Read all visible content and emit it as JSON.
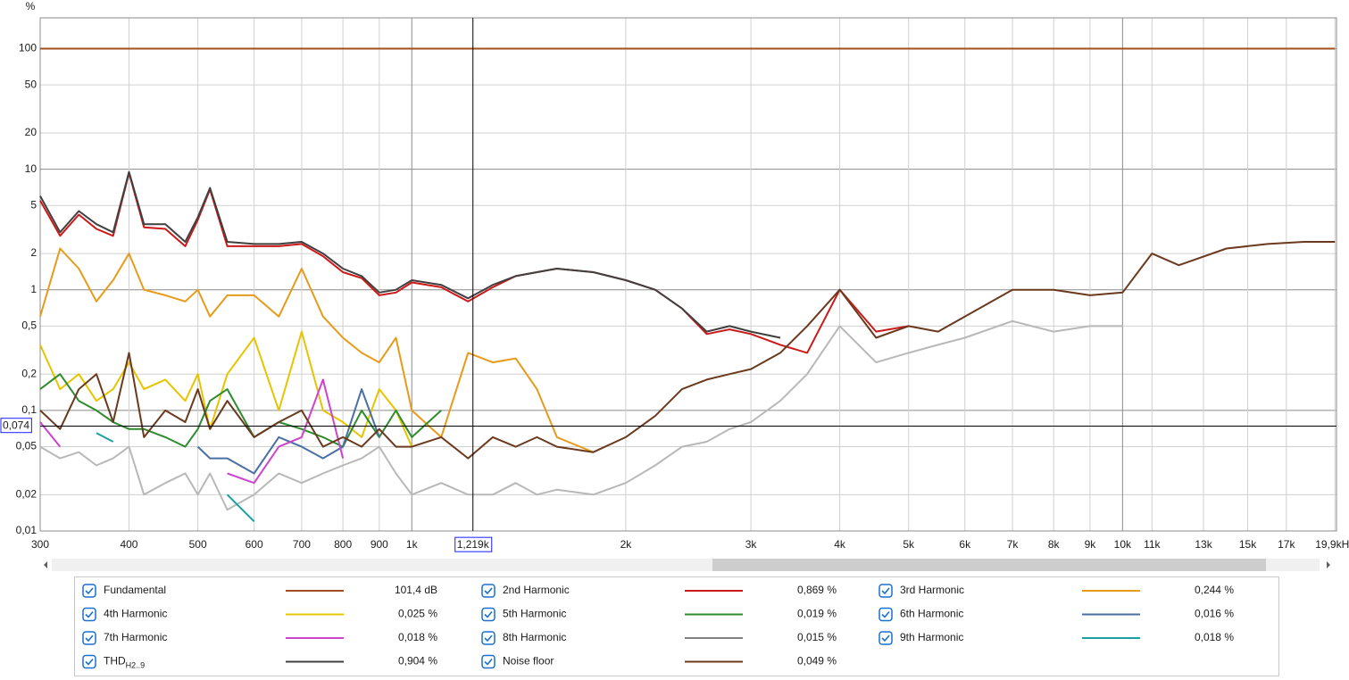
{
  "chart_data": {
    "type": "line",
    "y_label": "%",
    "log_x": true,
    "log_y": true,
    "grid": true,
    "xlim": [
      300,
      20000
    ],
    "ylim": [
      0.01,
      180
    ],
    "xticks": [
      300,
      400,
      500,
      600,
      700,
      800,
      900,
      {
        "value": 1000,
        "label": "1k"
      },
      {
        "value": 2000,
        "label": "2k"
      },
      {
        "value": 3000,
        "label": "3k"
      },
      {
        "value": 4000,
        "label": "4k"
      },
      {
        "value": 5000,
        "label": "5k"
      },
      {
        "value": 6000,
        "label": "6k"
      },
      {
        "value": 7000,
        "label": "7k"
      },
      {
        "value": 8000,
        "label": "8k"
      },
      {
        "value": 9000,
        "label": "9k"
      },
      {
        "value": 10000,
        "label": "10k"
      },
      {
        "value": 11000,
        "label": "11k"
      },
      {
        "value": 13000,
        "label": "13k"
      },
      {
        "value": 15000,
        "label": "15k"
      },
      {
        "value": 17000,
        "label": "17k"
      },
      {
        "value": 19900,
        "label": "19,9kHz"
      }
    ],
    "yticks": [
      {
        "value": 0.01,
        "label": "0,01"
      },
      {
        "value": 0.02,
        "label": "0,02"
      },
      {
        "value": 0.05,
        "label": "0,05"
      },
      {
        "value": 0.1,
        "label": "0,1"
      },
      {
        "value": 0.2,
        "label": "0,2"
      },
      {
        "value": 0.5,
        "label": "0,5"
      },
      1,
      2,
      5,
      10,
      20,
      50,
      100
    ],
    "cursor": {
      "x": {
        "value": 1219,
        "label": "1,219k"
      },
      "y": {
        "value": 0.074,
        "label": "0,074"
      }
    },
    "x": [
      300,
      320,
      340,
      360,
      380,
      400,
      420,
      450,
      480,
      500,
      520,
      550,
      600,
      650,
      700,
      750,
      800,
      850,
      900,
      950,
      1000,
      1100,
      1200,
      1300,
      1400,
      1500,
      1600,
      1800,
      2000,
      2200,
      2400,
      2600,
      2800,
      3000,
      3300,
      3600,
      4000,
      4500,
      5000,
      5500,
      6000,
      7000,
      8000,
      9000,
      10000,
      11000,
      12000,
      14000,
      16000,
      18000,
      19900
    ],
    "series": [
      {
        "name": "Fundamental",
        "color": "#a0501e",
        "readout": "101,4 dB",
        "values": [
          100,
          100,
          100,
          100,
          100,
          100,
          100,
          100,
          100,
          100,
          100,
          100,
          100,
          100,
          100,
          100,
          100,
          100,
          100,
          100,
          100,
          100,
          100,
          100,
          100,
          100,
          100,
          100,
          100,
          100,
          100,
          100,
          100,
          100,
          100,
          100,
          100,
          100,
          100,
          100,
          100,
          100,
          100,
          100,
          100,
          100,
          100,
          100,
          100,
          100,
          100
        ]
      },
      {
        "name": "2nd Harmonic",
        "color": "#cc1a1a",
        "readout": "0,869 %",
        "values": [
          5.5,
          2.8,
          4.2,
          3.2,
          2.8,
          9.3,
          3.3,
          3.2,
          2.3,
          3.8,
          6.8,
          2.3,
          2.3,
          2.3,
          2.4,
          1.9,
          1.4,
          1.25,
          0.9,
          0.95,
          1.15,
          1.05,
          0.8,
          1.05,
          1.3,
          1.4,
          1.5,
          1.4,
          1.2,
          1.0,
          0.7,
          0.43,
          0.47,
          0.43,
          0.35,
          0.3,
          1.0,
          0.45,
          0.5,
          null,
          null,
          null,
          null,
          null,
          null,
          null,
          null,
          null,
          null,
          null,
          null
        ]
      },
      {
        "name": "3rd Harmonic",
        "color": "#e89a1a",
        "readout": "0,244 %",
        "values": [
          0.6,
          2.2,
          1.5,
          0.8,
          1.2,
          2.0,
          1.0,
          0.9,
          0.8,
          1.0,
          0.6,
          0.9,
          0.9,
          0.6,
          1.5,
          0.6,
          0.4,
          0.3,
          0.25,
          0.4,
          0.1,
          0.06,
          0.3,
          0.25,
          0.27,
          0.15,
          0.06,
          0.045,
          null,
          null,
          null,
          null,
          null,
          null,
          null,
          null,
          null,
          null,
          null,
          null,
          null,
          null,
          null,
          null,
          null,
          null,
          null,
          null,
          null,
          null,
          null
        ]
      },
      {
        "name": "4th Harmonic",
        "color": "#e6c400",
        "readout": "0,025 %",
        "values": [
          0.35,
          0.15,
          0.2,
          0.12,
          0.15,
          0.25,
          0.15,
          0.18,
          0.12,
          0.2,
          0.07,
          0.2,
          0.4,
          0.1,
          0.45,
          0.1,
          0.08,
          0.06,
          0.15,
          0.1,
          0.05,
          null,
          null,
          null,
          null,
          null,
          null,
          null,
          null,
          null,
          null,
          null,
          null,
          null,
          null,
          null,
          null,
          null,
          null,
          null,
          null,
          null,
          null,
          null,
          null,
          null,
          null,
          null,
          null,
          null,
          null
        ]
      },
      {
        "name": "5th Harmonic",
        "color": "#2e8b2e",
        "readout": "0,019 %",
        "values": [
          0.15,
          0.2,
          0.12,
          0.1,
          0.08,
          0.07,
          0.07,
          0.06,
          0.05,
          0.07,
          0.12,
          0.15,
          0.06,
          0.08,
          0.07,
          0.06,
          0.05,
          0.1,
          0.06,
          0.1,
          0.06,
          0.1,
          null,
          null,
          null,
          null,
          null,
          null,
          null,
          null,
          null,
          null,
          null,
          null,
          null,
          null,
          null,
          null,
          null,
          null,
          null,
          null,
          null,
          null,
          null,
          null,
          null,
          null,
          null,
          null,
          null
        ]
      },
      {
        "name": "6th Harmonic",
        "color": "#4a6fa5",
        "readout": "0,016 %",
        "values": [
          null,
          null,
          null,
          null,
          null,
          null,
          null,
          null,
          null,
          0.05,
          0.04,
          0.04,
          0.03,
          0.06,
          0.05,
          0.04,
          0.05,
          0.15,
          0.06,
          null,
          null,
          null,
          null,
          null,
          null,
          null,
          null,
          null,
          null,
          null,
          null,
          null,
          null,
          null,
          null,
          null,
          null,
          null,
          null,
          null,
          null,
          null,
          null,
          null,
          null,
          null,
          null,
          null,
          null,
          null,
          null
        ]
      },
      {
        "name": "7th Harmonic",
        "color": "#cc44cc",
        "readout": "0,018 %",
        "values": [
          0.08,
          0.05,
          null,
          null,
          null,
          null,
          null,
          null,
          null,
          null,
          null,
          0.03,
          0.025,
          0.05,
          0.06,
          0.18,
          0.04,
          null,
          null,
          null,
          null,
          null,
          null,
          null,
          null,
          null,
          null,
          null,
          null,
          null,
          null,
          null,
          null,
          null,
          null,
          null,
          null,
          null,
          null,
          null,
          null,
          null,
          null,
          null,
          null,
          null,
          null,
          null,
          null,
          null,
          null
        ]
      },
      {
        "name": "8th Harmonic",
        "color": "#b8b8b8",
        "readout": "0,015 %",
        "values": [
          0.05,
          0.04,
          0.045,
          0.035,
          0.04,
          0.05,
          0.02,
          0.025,
          0.03,
          0.02,
          0.03,
          0.015,
          0.02,
          0.03,
          0.025,
          0.03,
          0.035,
          0.04,
          0.05,
          0.03,
          0.02,
          0.025,
          0.02,
          0.02,
          0.025,
          0.02,
          0.022,
          0.02,
          0.025,
          0.035,
          0.05,
          0.055,
          0.07,
          0.08,
          0.12,
          0.2,
          0.5,
          0.25,
          0.3,
          0.35,
          0.4,
          0.55,
          0.45,
          0.5,
          0.5,
          null,
          null,
          null,
          null,
          null,
          null
        ]
      },
      {
        "name": "9th Harmonic",
        "color": "#1aa0a0",
        "readout": "0,018 %",
        "values": [
          null,
          null,
          null,
          0.065,
          0.055,
          null,
          null,
          null,
          null,
          null,
          null,
          0.02,
          0.012,
          null,
          null,
          null,
          null,
          null,
          null,
          null,
          null,
          null,
          null,
          null,
          null,
          null,
          null,
          null,
          null,
          null,
          null,
          null,
          null,
          null,
          null,
          null,
          null,
          null,
          null,
          null,
          null,
          null,
          null,
          null,
          null,
          null,
          null,
          null,
          null,
          null,
          null
        ]
      },
      {
        "name": "THD",
        "name_sub": "H2..9",
        "color": "#404040",
        "readout": "0,904 %",
        "values": [
          6,
          3,
          4.5,
          3.5,
          3,
          9.5,
          3.5,
          3.5,
          2.5,
          4,
          7,
          2.5,
          2.4,
          2.4,
          2.5,
          2,
          1.5,
          1.3,
          0.95,
          1.0,
          1.2,
          1.1,
          0.85,
          1.1,
          1.3,
          1.4,
          1.5,
          1.4,
          1.2,
          1.0,
          0.7,
          0.45,
          0.5,
          0.45,
          0.4,
          null,
          null,
          null,
          null,
          null,
          null,
          null,
          null,
          null,
          null,
          null,
          null,
          null,
          null,
          null,
          null
        ]
      },
      {
        "name": "Noise floor",
        "color": "#6b3a1e",
        "readout": "0,049 %",
        "values": [
          0.1,
          0.07,
          0.15,
          0.2,
          0.08,
          0.3,
          0.06,
          0.1,
          0.08,
          0.15,
          0.07,
          0.12,
          0.06,
          0.08,
          0.1,
          0.05,
          0.06,
          0.05,
          0.07,
          0.05,
          0.05,
          0.06,
          0.04,
          0.06,
          0.05,
          0.06,
          0.05,
          0.045,
          0.06,
          0.09,
          0.15,
          0.18,
          0.2,
          0.22,
          0.3,
          0.5,
          1.0,
          0.4,
          0.5,
          0.45,
          0.6,
          1.0,
          1.0,
          0.9,
          0.95,
          2.0,
          1.6,
          2.2,
          2.4,
          2.5,
          2.5
        ]
      }
    ]
  }
}
